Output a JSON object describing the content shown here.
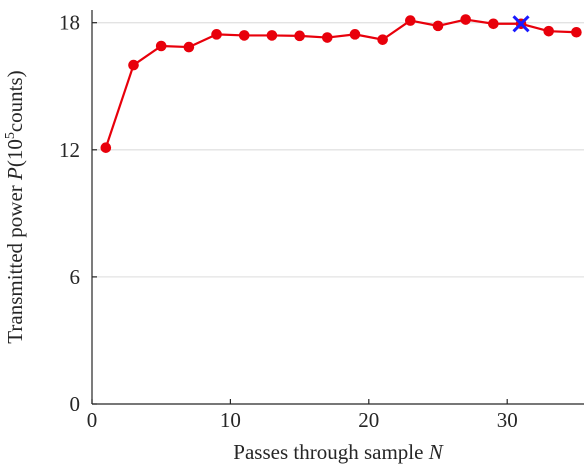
{
  "chart_data": {
    "type": "line",
    "xlabel": {
      "text": "Passes through sample ",
      "var": "N"
    },
    "ylabel": {
      "pre": "Transmitted power ",
      "var": "P",
      "unit_open": "(10",
      "exp": "5",
      "unit_close": "counts)"
    },
    "xlim": [
      0,
      35
    ],
    "ylim": [
      0,
      18.6
    ],
    "xticks": [
      0,
      10,
      20,
      30
    ],
    "yticks": [
      0,
      6,
      12,
      18
    ],
    "grid": "horizontal",
    "colors": {
      "series": "#e8000b",
      "marker": "#1a1aff"
    },
    "series": [
      {
        "x": [
          1,
          3,
          5,
          7,
          9,
          11,
          13,
          15,
          17,
          19,
          21,
          23,
          25,
          27,
          29,
          31,
          33,
          35
        ],
        "y": [
          12.1,
          16.0,
          16.9,
          16.85,
          17.45,
          17.4,
          17.4,
          17.38,
          17.3,
          17.45,
          17.2,
          18.1,
          17.85,
          18.15,
          17.95,
          17.95,
          17.6,
          17.55
        ]
      }
    ],
    "highlight": {
      "x": 31,
      "y": 17.95,
      "marker": "x"
    }
  }
}
